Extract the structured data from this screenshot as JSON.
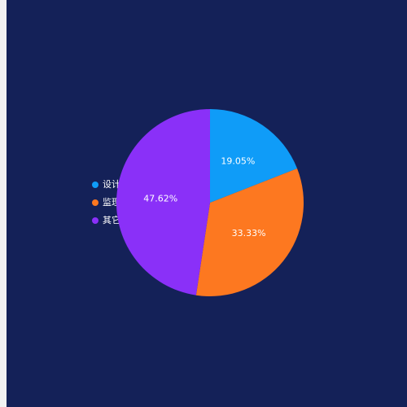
{
  "chart_data": {
    "type": "pie",
    "categories": [
      "设计",
      "监理",
      "其它"
    ],
    "values": [
      19.05,
      33.33,
      47.62
    ],
    "value_labels": [
      "19.05%",
      "33.33%",
      "47.62%"
    ],
    "colors": [
      "#0f9cf8",
      "#fd7820",
      "#8a30f8"
    ]
  }
}
